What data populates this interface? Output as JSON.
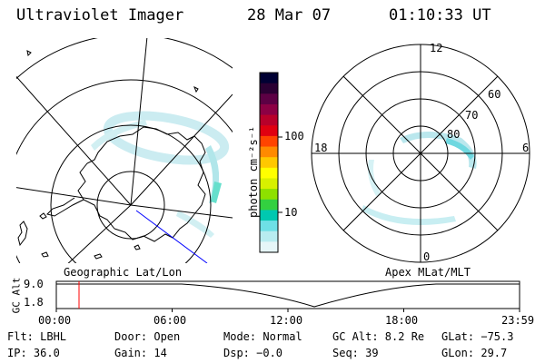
{
  "header": {
    "instrument": "Ultraviolet Imager",
    "date": "28 Mar 07",
    "time": "01:10:33 UT"
  },
  "colorbar": {
    "unit_label": "photon cm⁻²s⁻¹",
    "ticks": [
      "100",
      "10"
    ],
    "colors": [
      "#000033",
      "#2a0033",
      "#5c0044",
      "#8c0044",
      "#b8002a",
      "#e00010",
      "#ff4400",
      "#ff8a00",
      "#ffc800",
      "#ffff00",
      "#d8f000",
      "#8ee000",
      "#33d040",
      "#00c8b0",
      "#6ee0e6",
      "#b8ecf0",
      "#e6f6f8"
    ]
  },
  "map_left": {
    "caption": "Geographic Lat/Lon"
  },
  "map_right": {
    "caption": "Apex MLat/MLT",
    "mlt_labels": {
      "top": "12",
      "left": "18",
      "right": "6",
      "bottom": "0"
    },
    "lat_labels": [
      "60",
      "70",
      "80"
    ]
  },
  "timeline": {
    "ylabel": "GC Alt",
    "yticks": [
      "9.0",
      "1.8"
    ],
    "xticks": [
      "00:00",
      "06:00",
      "12:00",
      "18:00",
      "23:59"
    ],
    "current_time_fraction": 0.049,
    "marker_color": "#ff0000"
  },
  "footer": {
    "row1": {
      "flt": "Flt: LBHL",
      "door": "Door: Open",
      "mode": "Mode: Normal",
      "gcalt": "GC Alt: 8.2 Re",
      "glat": "GLat: −75.3"
    },
    "row2": {
      "ip": "IP: 36.0",
      "gain": "Gain: 14",
      "dsp": "Dsp:  −0.0",
      "seq": "Seq: 39",
      "glon": "GLon:  29.7"
    }
  }
}
